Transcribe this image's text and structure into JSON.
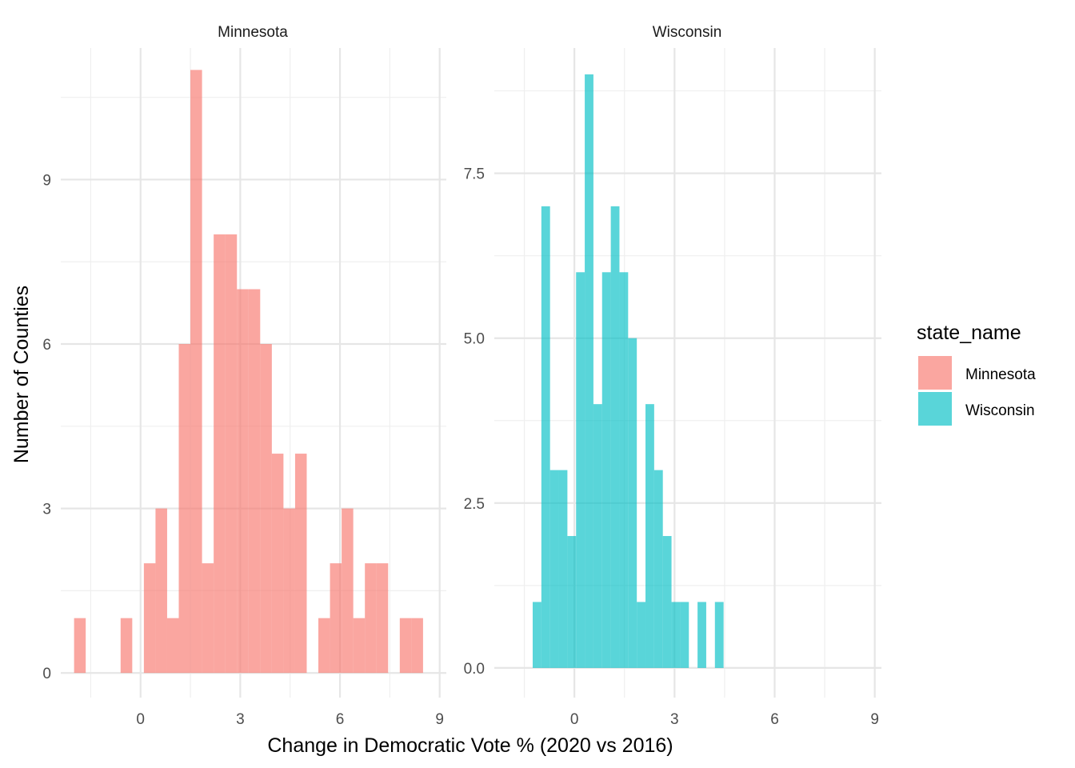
{
  "chart_data": {
    "type": "histogram",
    "xlabel": "Change in Democratic Vote % (2020 vs 2016)",
    "ylabel": "Number of Counties",
    "legend": {
      "title": "state_name",
      "placement": "right",
      "entries": [
        "Minnesota",
        "Wisconsin"
      ]
    },
    "colors": {
      "Minnesota": "#F8766D",
      "Wisconsin": "#00BFC4"
    },
    "fill_opacity": 0.65,
    "grid": true,
    "panels": [
      {
        "name": "Minnesota",
        "xlim": [
          -2.4,
          9.2
        ],
        "ylim": [
          -0.45,
          11.4
        ],
        "x_ticks": [
          0,
          3,
          6,
          9
        ],
        "x_tick_labels": [
          "0",
          "3",
          "6",
          "9"
        ],
        "y_ticks": [
          0,
          3,
          6,
          9
        ],
        "y_tick_labels": [
          "0",
          "3",
          "6",
          "9"
        ],
        "bin_width": 0.35,
        "bins": [
          {
            "x0": -2.0,
            "count": 1
          },
          {
            "x0": -1.65,
            "count": 0
          },
          {
            "x0": -1.3,
            "count": 0
          },
          {
            "x0": -0.95,
            "count": 0
          },
          {
            "x0": -0.6,
            "count": 1
          },
          {
            "x0": -0.25,
            "count": 0
          },
          {
            "x0": 0.1,
            "count": 2
          },
          {
            "x0": 0.45,
            "count": 3
          },
          {
            "x0": 0.8,
            "count": 1
          },
          {
            "x0": 1.15,
            "count": 6
          },
          {
            "x0": 1.5,
            "count": 11
          },
          {
            "x0": 1.85,
            "count": 2
          },
          {
            "x0": 2.2,
            "count": 8
          },
          {
            "x0": 2.55,
            "count": 8
          },
          {
            "x0": 2.9,
            "count": 7
          },
          {
            "x0": 3.25,
            "count": 7
          },
          {
            "x0": 3.6,
            "count": 6
          },
          {
            "x0": 3.95,
            "count": 4
          },
          {
            "x0": 4.3,
            "count": 3
          },
          {
            "x0": 4.65,
            "count": 4
          },
          {
            "x0": 5.0,
            "count": 0
          },
          {
            "x0": 5.35,
            "count": 1
          },
          {
            "x0": 5.7,
            "count": 2
          },
          {
            "x0": 6.05,
            "count": 3
          },
          {
            "x0": 6.4,
            "count": 1
          },
          {
            "x0": 6.75,
            "count": 2
          },
          {
            "x0": 7.1,
            "count": 2
          },
          {
            "x0": 7.45,
            "count": 0
          },
          {
            "x0": 7.8,
            "count": 1
          },
          {
            "x0": 8.15,
            "count": 1
          }
        ]
      },
      {
        "name": "Wisconsin",
        "xlim": [
          -2.4,
          9.2
        ],
        "ylim": [
          -0.45,
          9.4
        ],
        "x_ticks": [
          0,
          3,
          6,
          9
        ],
        "x_tick_labels": [
          "0",
          "3",
          "6",
          "9"
        ],
        "y_ticks": [
          0,
          2.5,
          5,
          7.5
        ],
        "y_tick_labels": [
          "0.0",
          "2.5",
          "5.0",
          "7.5"
        ],
        "bin_width": 0.26,
        "bins": [
          {
            "x0": -1.25,
            "count": 1
          },
          {
            "x0": -0.99,
            "count": 7
          },
          {
            "x0": -0.73,
            "count": 3
          },
          {
            "x0": -0.47,
            "count": 3
          },
          {
            "x0": -0.21,
            "count": 2
          },
          {
            "x0": 0.05,
            "count": 6
          },
          {
            "x0": 0.31,
            "count": 9
          },
          {
            "x0": 0.57,
            "count": 4
          },
          {
            "x0": 0.83,
            "count": 6
          },
          {
            "x0": 1.09,
            "count": 7
          },
          {
            "x0": 1.35,
            "count": 6
          },
          {
            "x0": 1.61,
            "count": 5
          },
          {
            "x0": 1.87,
            "count": 1
          },
          {
            "x0": 2.13,
            "count": 4
          },
          {
            "x0": 2.39,
            "count": 3
          },
          {
            "x0": 2.65,
            "count": 2
          },
          {
            "x0": 2.91,
            "count": 1
          },
          {
            "x0": 3.17,
            "count": 1
          },
          {
            "x0": 3.43,
            "count": 0
          },
          {
            "x0": 3.69,
            "count": 1
          },
          {
            "x0": 3.95,
            "count": 0
          },
          {
            "x0": 4.21,
            "count": 1
          }
        ]
      }
    ]
  }
}
